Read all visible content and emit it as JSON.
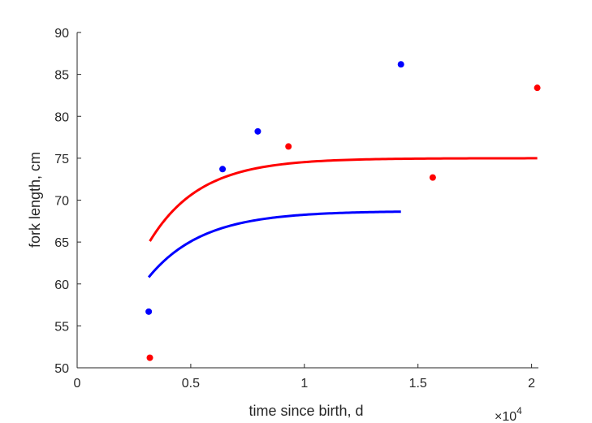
{
  "chart_data": {
    "type": "scatter",
    "title": "",
    "xlabel": "time since birth, d",
    "ylabel": "fork length, cm",
    "x_exponent_label": "×10",
    "x_exponent_power": "4",
    "xlim": [
      0,
      20300
    ],
    "ylim": [
      50,
      90
    ],
    "x_ticks": [
      0,
      5000,
      10000,
      15000,
      20000
    ],
    "x_tick_labels": [
      "0",
      "0.5",
      "1",
      "1.5",
      "2"
    ],
    "y_ticks": [
      50,
      55,
      60,
      65,
      70,
      75,
      80,
      85,
      90
    ],
    "y_tick_labels": [
      "50",
      "55",
      "60",
      "65",
      "70",
      "75",
      "80",
      "85",
      "90"
    ],
    "grid": false,
    "series": [
      {
        "name": "blue observations",
        "kind": "scatter",
        "color": "#0000ff",
        "x": [
          3150,
          6400,
          7950,
          14250
        ],
        "y": [
          56.7,
          73.7,
          78.2,
          86.2
        ]
      },
      {
        "name": "red observations",
        "kind": "scatter",
        "color": "#ff0000",
        "x": [
          3200,
          9300,
          15650,
          20250
        ],
        "y": [
          51.2,
          76.4,
          72.7,
          83.4
        ]
      },
      {
        "name": "blue growth curve",
        "kind": "line",
        "color": "#0000ff",
        "Linf": 68.7,
        "K": 0.00042,
        "t0": -2000,
        "x_start": 3150,
        "x_end": 14250
      },
      {
        "name": "red growth curve",
        "kind": "line",
        "color": "#ff0000",
        "Linf": 75.0,
        "K": 0.00045,
        "t0": -1300,
        "x_start": 3200,
        "x_end": 20250
      }
    ]
  }
}
